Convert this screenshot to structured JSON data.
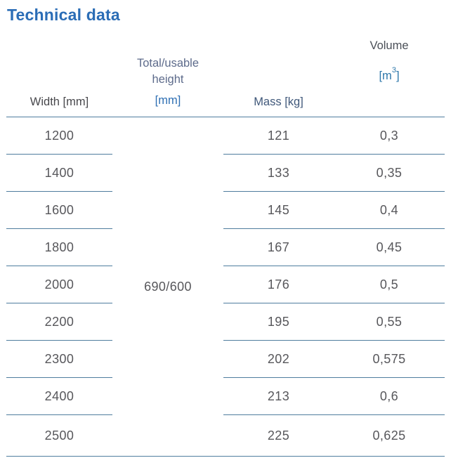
{
  "page": {
    "title": "Technical data"
  },
  "table": {
    "headers": {
      "width": "Width [mm]",
      "height_line1": "Total/usable",
      "height_line2": "height",
      "height_unit": "[mm]",
      "mass": "Mass [kg]",
      "volume": "Volume",
      "volume_unit_open": "[m",
      "volume_unit_sup": "3",
      "volume_unit_close": "]"
    },
    "merged_height_value": "690/600",
    "rows": [
      {
        "width": "1200",
        "mass": "121",
        "volume": "0,3"
      },
      {
        "width": "1400",
        "mass": "133",
        "volume": "0,35"
      },
      {
        "width": "1600",
        "mass": "145",
        "volume": "0,4"
      },
      {
        "width": "1800",
        "mass": "167",
        "volume": "0,45"
      },
      {
        "width": "2000",
        "mass": "176",
        "volume": "0,5"
      },
      {
        "width": "2200",
        "mass": "195",
        "volume": "0,55"
      },
      {
        "width": "2300",
        "mass": "202",
        "volume": "0,575"
      },
      {
        "width": "2400",
        "mass": "213",
        "volume": "0,6"
      },
      {
        "width": "2500",
        "mass": "225",
        "volume": "0,625"
      }
    ]
  },
  "colors": {
    "title_blue": "#2b6db6",
    "unit_blue": "#2e6fb3",
    "header_gray_blue": "#5d6b8b",
    "header_steel_blue": "#40587a",
    "header_dark_gray": "#48484c",
    "data_text": "#57575b",
    "rule_line": "#4f7d9e",
    "background": "#ffffff"
  }
}
